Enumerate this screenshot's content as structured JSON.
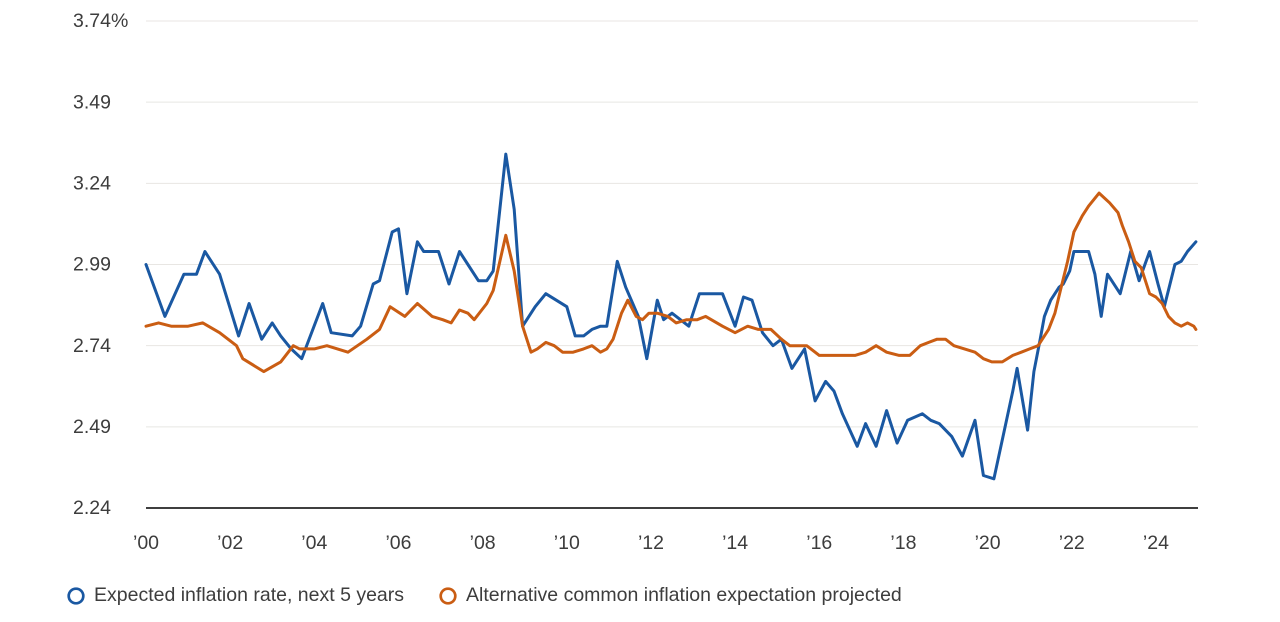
{
  "chart_data": {
    "type": "line",
    "title": "",
    "xlabel": "",
    "ylabel": "",
    "xlim": [
      2000,
      2025
    ],
    "ylim": [
      2.24,
      3.74
    ],
    "grid": "horizontal",
    "legend_position": "bottom",
    "ytick_values": [
      3.74,
      3.49,
      3.24,
      2.99,
      2.74,
      2.49,
      2.24
    ],
    "ytick_labels": [
      "3.74%",
      "3.49",
      "3.24",
      "2.99",
      "2.74",
      "2.49",
      "2.24"
    ],
    "xtick_values": [
      2000,
      2002,
      2004,
      2006,
      2008,
      2010,
      2012,
      2014,
      2016,
      2018,
      2020,
      2022,
      2024
    ],
    "xtick_labels": [
      "’00",
      "’02",
      "’04",
      "’06",
      "’08",
      "’10",
      "’12",
      "’14",
      "’16",
      "’18",
      "’20",
      "’22",
      "’24"
    ],
    "colors": {
      "grid": "#e8e6e3",
      "axis": "#3f3f3f",
      "text": "#3d3d3d"
    },
    "series": [
      {
        "name": "Expected inflation rate, next 5 years",
        "color": "#1a58a2",
        "marker": "open-circle",
        "points": [
          [
            2000.0,
            2.99
          ],
          [
            2000.45,
            2.83
          ],
          [
            2000.9,
            2.96
          ],
          [
            2001.2,
            2.96
          ],
          [
            2001.4,
            3.03
          ],
          [
            2001.75,
            2.96
          ],
          [
            2002.2,
            2.77
          ],
          [
            2002.45,
            2.87
          ],
          [
            2002.75,
            2.76
          ],
          [
            2003.0,
            2.81
          ],
          [
            2003.2,
            2.77
          ],
          [
            2003.45,
            2.73
          ],
          [
            2003.7,
            2.7
          ],
          [
            2004.2,
            2.87
          ],
          [
            2004.4,
            2.78
          ],
          [
            2004.9,
            2.77
          ],
          [
            2005.1,
            2.8
          ],
          [
            2005.4,
            2.93
          ],
          [
            2005.55,
            2.94
          ],
          [
            2005.85,
            3.09
          ],
          [
            2006.0,
            3.1
          ],
          [
            2006.2,
            2.9
          ],
          [
            2006.45,
            3.06
          ],
          [
            2006.6,
            3.03
          ],
          [
            2006.95,
            3.03
          ],
          [
            2007.2,
            2.93
          ],
          [
            2007.45,
            3.03
          ],
          [
            2007.65,
            2.99
          ],
          [
            2007.9,
            2.94
          ],
          [
            2008.1,
            2.94
          ],
          [
            2008.25,
            2.97
          ],
          [
            2008.55,
            3.33
          ],
          [
            2008.75,
            3.16
          ],
          [
            2008.95,
            2.8
          ],
          [
            2009.25,
            2.86
          ],
          [
            2009.5,
            2.9
          ],
          [
            2009.75,
            2.88
          ],
          [
            2010.0,
            2.86
          ],
          [
            2010.2,
            2.77
          ],
          [
            2010.4,
            2.77
          ],
          [
            2010.6,
            2.79
          ],
          [
            2010.8,
            2.8
          ],
          [
            2010.95,
            2.8
          ],
          [
            2011.2,
            3.0
          ],
          [
            2011.4,
            2.92
          ],
          [
            2011.7,
            2.83
          ],
          [
            2011.9,
            2.7
          ],
          [
            2012.15,
            2.88
          ],
          [
            2012.3,
            2.82
          ],
          [
            2012.5,
            2.84
          ],
          [
            2012.7,
            2.82
          ],
          [
            2012.9,
            2.8
          ],
          [
            2013.15,
            2.9
          ],
          [
            2013.7,
            2.9
          ],
          [
            2014.0,
            2.8
          ],
          [
            2014.2,
            2.89
          ],
          [
            2014.4,
            2.88
          ],
          [
            2014.65,
            2.78
          ],
          [
            2014.9,
            2.74
          ],
          [
            2015.1,
            2.76
          ],
          [
            2015.35,
            2.67
          ],
          [
            2015.65,
            2.73
          ],
          [
            2015.9,
            2.57
          ],
          [
            2016.15,
            2.63
          ],
          [
            2016.35,
            2.6
          ],
          [
            2016.55,
            2.53
          ],
          [
            2016.9,
            2.43
          ],
          [
            2017.1,
            2.5
          ],
          [
            2017.35,
            2.43
          ],
          [
            2017.6,
            2.54
          ],
          [
            2017.85,
            2.44
          ],
          [
            2018.1,
            2.51
          ],
          [
            2018.45,
            2.53
          ],
          [
            2018.65,
            2.51
          ],
          [
            2018.85,
            2.5
          ],
          [
            2019.15,
            2.46
          ],
          [
            2019.4,
            2.4
          ],
          [
            2019.7,
            2.51
          ],
          [
            2019.9,
            2.34
          ],
          [
            2020.15,
            2.33
          ],
          [
            2020.35,
            2.45
          ],
          [
            2020.6,
            2.6
          ],
          [
            2020.7,
            2.67
          ],
          [
            2020.95,
            2.48
          ],
          [
            2021.1,
            2.66
          ],
          [
            2021.25,
            2.76
          ],
          [
            2021.35,
            2.83
          ],
          [
            2021.5,
            2.88
          ],
          [
            2021.7,
            2.92
          ],
          [
            2021.8,
            2.93
          ],
          [
            2021.95,
            2.97
          ],
          [
            2022.05,
            3.03
          ],
          [
            2022.4,
            3.03
          ],
          [
            2022.55,
            2.96
          ],
          [
            2022.7,
            2.83
          ],
          [
            2022.85,
            2.96
          ],
          [
            2023.15,
            2.9
          ],
          [
            2023.4,
            3.03
          ],
          [
            2023.6,
            2.94
          ],
          [
            2023.85,
            3.03
          ],
          [
            2024.05,
            2.93
          ],
          [
            2024.2,
            2.86
          ],
          [
            2024.45,
            2.99
          ],
          [
            2024.6,
            3.0
          ],
          [
            2024.75,
            3.03
          ],
          [
            2024.95,
            3.06
          ]
        ]
      },
      {
        "name": "Alternative common inflation expectation projected",
        "color": "#ca5d13",
        "marker": "open-circle",
        "points": [
          [
            2000.0,
            2.8
          ],
          [
            2000.3,
            2.81
          ],
          [
            2000.6,
            2.8
          ],
          [
            2001.0,
            2.8
          ],
          [
            2001.35,
            2.81
          ],
          [
            2001.75,
            2.78
          ],
          [
            2002.15,
            2.74
          ],
          [
            2002.3,
            2.7
          ],
          [
            2002.8,
            2.66
          ],
          [
            2003.2,
            2.69
          ],
          [
            2003.5,
            2.74
          ],
          [
            2003.65,
            2.73
          ],
          [
            2004.0,
            2.73
          ],
          [
            2004.3,
            2.74
          ],
          [
            2004.8,
            2.72
          ],
          [
            2005.25,
            2.76
          ],
          [
            2005.55,
            2.79
          ],
          [
            2005.8,
            2.86
          ],
          [
            2006.15,
            2.83
          ],
          [
            2006.45,
            2.87
          ],
          [
            2006.8,
            2.83
          ],
          [
            2007.05,
            2.82
          ],
          [
            2007.25,
            2.81
          ],
          [
            2007.45,
            2.85
          ],
          [
            2007.65,
            2.84
          ],
          [
            2007.8,
            2.82
          ],
          [
            2008.1,
            2.87
          ],
          [
            2008.25,
            2.91
          ],
          [
            2008.55,
            3.08
          ],
          [
            2008.75,
            2.97
          ],
          [
            2008.95,
            2.8
          ],
          [
            2009.15,
            2.72
          ],
          [
            2009.3,
            2.73
          ],
          [
            2009.5,
            2.75
          ],
          [
            2009.7,
            2.74
          ],
          [
            2009.9,
            2.72
          ],
          [
            2010.15,
            2.72
          ],
          [
            2010.4,
            2.73
          ],
          [
            2010.6,
            2.74
          ],
          [
            2010.8,
            2.72
          ],
          [
            2010.95,
            2.73
          ],
          [
            2011.1,
            2.76
          ],
          [
            2011.3,
            2.84
          ],
          [
            2011.45,
            2.88
          ],
          [
            2011.65,
            2.83
          ],
          [
            2011.8,
            2.82
          ],
          [
            2011.95,
            2.84
          ],
          [
            2012.15,
            2.84
          ],
          [
            2012.4,
            2.83
          ],
          [
            2012.6,
            2.81
          ],
          [
            2012.85,
            2.82
          ],
          [
            2013.1,
            2.82
          ],
          [
            2013.3,
            2.83
          ],
          [
            2013.7,
            2.8
          ],
          [
            2014.0,
            2.78
          ],
          [
            2014.3,
            2.8
          ],
          [
            2014.55,
            2.79
          ],
          [
            2014.85,
            2.79
          ],
          [
            2015.1,
            2.76
          ],
          [
            2015.3,
            2.74
          ],
          [
            2015.7,
            2.74
          ],
          [
            2016.0,
            2.71
          ],
          [
            2016.85,
            2.71
          ],
          [
            2017.1,
            2.72
          ],
          [
            2017.35,
            2.74
          ],
          [
            2017.6,
            2.72
          ],
          [
            2017.9,
            2.71
          ],
          [
            2018.15,
            2.71
          ],
          [
            2018.4,
            2.74
          ],
          [
            2018.6,
            2.75
          ],
          [
            2018.8,
            2.76
          ],
          [
            2019.0,
            2.76
          ],
          [
            2019.2,
            2.74
          ],
          [
            2019.45,
            2.73
          ],
          [
            2019.7,
            2.72
          ],
          [
            2019.9,
            2.7
          ],
          [
            2020.1,
            2.69
          ],
          [
            2020.35,
            2.69
          ],
          [
            2020.6,
            2.71
          ],
          [
            2020.8,
            2.72
          ],
          [
            2021.0,
            2.73
          ],
          [
            2021.2,
            2.74
          ],
          [
            2021.45,
            2.79
          ],
          [
            2021.6,
            2.84
          ],
          [
            2021.75,
            2.92
          ],
          [
            2021.9,
            3.0
          ],
          [
            2022.05,
            3.09
          ],
          [
            2022.25,
            3.14
          ],
          [
            2022.4,
            3.17
          ],
          [
            2022.65,
            3.21
          ],
          [
            2022.9,
            3.18
          ],
          [
            2023.1,
            3.15
          ],
          [
            2023.2,
            3.11
          ],
          [
            2023.35,
            3.06
          ],
          [
            2023.5,
            3.0
          ],
          [
            2023.65,
            2.98
          ],
          [
            2023.85,
            2.9
          ],
          [
            2024.0,
            2.89
          ],
          [
            2024.15,
            2.87
          ],
          [
            2024.3,
            2.83
          ],
          [
            2024.45,
            2.81
          ],
          [
            2024.6,
            2.8
          ],
          [
            2024.75,
            2.81
          ],
          [
            2024.9,
            2.8
          ],
          [
            2024.95,
            2.79
          ]
        ]
      }
    ]
  },
  "legend": {
    "items": [
      {
        "icon": "open-circle-blue-icon",
        "label": "Expected inflation rate, next 5 years"
      },
      {
        "icon": "open-circle-orange-icon",
        "label": "Alternative common inflation expectation projected"
      }
    ]
  }
}
